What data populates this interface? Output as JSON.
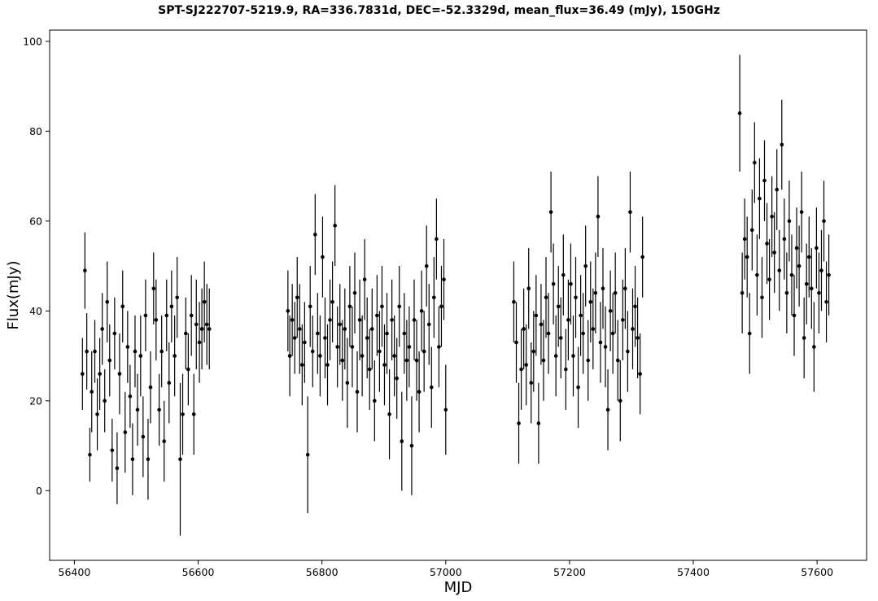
{
  "chart_data": {
    "type": "scatter",
    "title": "SPT-SJ222707-5219.9, RA=336.7831d, DEC=-52.3329d, mean_flux=36.49 (mJy), 150GHz",
    "xlabel": "MJD",
    "ylabel": "Flux(mJy)",
    "xlim": [
      56360,
      57680
    ],
    "ylim": [
      -15.5,
      102.5
    ],
    "xticks": [
      56400,
      56600,
      56800,
      57000,
      57200,
      57400,
      57600
    ],
    "yticks": [
      0,
      20,
      40,
      60,
      80,
      100
    ],
    "grid": false,
    "legend": "none",
    "error_bars": true,
    "marker_color": "#000000",
    "series": [
      {
        "points": [
          [
            56413,
            26,
            8
          ],
          [
            56417,
            49,
            8.5
          ],
          [
            56420,
            31,
            8.5
          ],
          [
            56425,
            8,
            6
          ],
          [
            56428,
            22,
            9
          ],
          [
            56433,
            31,
            7
          ],
          [
            56437,
            17,
            8
          ],
          [
            56441,
            26,
            8
          ],
          [
            56445,
            36,
            8
          ],
          [
            56449,
            20,
            7
          ],
          [
            56453,
            42,
            9
          ],
          [
            56457,
            29,
            8
          ],
          [
            56461,
            9,
            7
          ],
          [
            56465,
            35,
            8
          ],
          [
            56469,
            5,
            8
          ],
          [
            56473,
            26,
            9
          ],
          [
            56478,
            41,
            8
          ],
          [
            56482,
            13,
            9
          ],
          [
            56486,
            32,
            8
          ],
          [
            56490,
            21,
            7
          ],
          [
            56494,
            7,
            8
          ],
          [
            56498,
            31,
            8
          ],
          [
            56502,
            18,
            8
          ],
          [
            56507,
            30,
            9
          ],
          [
            56511,
            12,
            9
          ],
          [
            56515,
            39,
            8
          ],
          [
            56519,
            7,
            9
          ],
          [
            56523,
            23,
            8
          ],
          [
            56528,
            45,
            8
          ],
          [
            56532,
            38,
            9
          ],
          [
            56537,
            18,
            8
          ],
          [
            56541,
            31,
            8
          ],
          [
            56545,
            11,
            9
          ],
          [
            56549,
            39,
            8
          ],
          [
            56553,
            24,
            9
          ],
          [
            56557,
            41,
            8
          ],
          [
            56562,
            30,
            9
          ],
          [
            56566,
            43,
            9
          ],
          [
            56571,
            7,
            17
          ],
          [
            56575,
            17,
            9
          ],
          [
            56580,
            35,
            8
          ],
          [
            56584,
            27,
            8
          ],
          [
            56589,
            39,
            9
          ],
          [
            56593,
            17,
            9
          ],
          [
            56597,
            37,
            10
          ],
          [
            56602,
            33,
            9
          ],
          [
            56606,
            36,
            9
          ],
          [
            56610,
            42,
            9
          ],
          [
            56614,
            37,
            9
          ],
          [
            56618,
            36,
            9
          ],
          [
            56745,
            40,
            9
          ],
          [
            56748,
            30,
            9
          ],
          [
            56752,
            38,
            8
          ],
          [
            56756,
            34,
            8
          ],
          [
            56760,
            43,
            9
          ],
          [
            56764,
            36,
            10
          ],
          [
            56768,
            28,
            9
          ],
          [
            56772,
            33,
            9
          ],
          [
            56777,
            8,
            13
          ],
          [
            56781,
            41,
            9
          ],
          [
            56785,
            31,
            8
          ],
          [
            56789,
            57,
            9
          ],
          [
            56793,
            35,
            9
          ],
          [
            56797,
            30,
            9
          ],
          [
            56801,
            52,
            9
          ],
          [
            56805,
            34,
            9
          ],
          [
            56809,
            28,
            9
          ],
          [
            56813,
            38,
            9
          ],
          [
            56817,
            42,
            9
          ],
          [
            56821,
            59,
            9
          ],
          [
            56825,
            32,
            9
          ],
          [
            56829,
            37,
            9
          ],
          [
            56833,
            29,
            9
          ],
          [
            56837,
            36,
            9
          ],
          [
            56841,
            24,
            10
          ],
          [
            56845,
            41,
            9
          ],
          [
            56849,
            32,
            9
          ],
          [
            56853,
            44,
            9
          ],
          [
            56857,
            22,
            9
          ],
          [
            56861,
            38,
            9
          ],
          [
            56865,
            30,
            9
          ],
          [
            56869,
            47,
            9
          ],
          [
            56873,
            34,
            9
          ],
          [
            56877,
            27,
            9
          ],
          [
            56881,
            36,
            9
          ],
          [
            56885,
            20,
            9
          ],
          [
            56889,
            39,
            9
          ],
          [
            56893,
            31,
            9
          ],
          [
            56897,
            41,
            9
          ],
          [
            56901,
            28,
            9
          ],
          [
            56905,
            35,
            9
          ],
          [
            56909,
            17,
            10
          ],
          [
            56913,
            38,
            9
          ],
          [
            56917,
            30,
            9
          ],
          [
            56921,
            25,
            9
          ],
          [
            56925,
            41,
            9
          ],
          [
            56929,
            11,
            11
          ],
          [
            56933,
            35,
            9
          ],
          [
            56937,
            29,
            9
          ],
          [
            56941,
            32,
            9
          ],
          [
            56945,
            10,
            11
          ],
          [
            56949,
            38,
            9
          ],
          [
            56953,
            29,
            9
          ],
          [
            56957,
            22,
            9
          ],
          [
            56961,
            40,
            9
          ],
          [
            56965,
            31,
            9
          ],
          [
            56969,
            50,
            9
          ],
          [
            56973,
            37,
            9
          ],
          [
            56977,
            23,
            9
          ],
          [
            56981,
            43,
            9
          ],
          [
            56985,
            56,
            9
          ],
          [
            56989,
            32,
            9
          ],
          [
            56993,
            41,
            9
          ],
          [
            56997,
            47,
            9
          ],
          [
            57000,
            18,
            10
          ],
          [
            57110,
            42,
            9
          ],
          [
            57114,
            33,
            9
          ],
          [
            57118,
            15,
            9
          ],
          [
            57122,
            27,
            9
          ],
          [
            57126,
            36,
            9
          ],
          [
            57130,
            28,
            9
          ],
          [
            57134,
            45,
            9
          ],
          [
            57138,
            24,
            9
          ],
          [
            57142,
            31,
            9
          ],
          [
            57146,
            39,
            9
          ],
          [
            57150,
            15,
            9
          ],
          [
            57154,
            37,
            9
          ],
          [
            57158,
            29,
            9
          ],
          [
            57162,
            43,
            9
          ],
          [
            57166,
            35,
            9
          ],
          [
            57170,
            62,
            9
          ],
          [
            57174,
            46,
            9
          ],
          [
            57178,
            30,
            9
          ],
          [
            57182,
            41,
            9
          ],
          [
            57186,
            34,
            9
          ],
          [
            57190,
            48,
            9
          ],
          [
            57194,
            27,
            9
          ],
          [
            57198,
            38,
            9
          ],
          [
            57202,
            46,
            9
          ],
          [
            57206,
            30,
            9
          ],
          [
            57210,
            43,
            9
          ],
          [
            57214,
            23,
            9
          ],
          [
            57218,
            39,
            9
          ],
          [
            57222,
            35,
            9
          ],
          [
            57226,
            50,
            9
          ],
          [
            57230,
            29,
            9
          ],
          [
            57234,
            42,
            9
          ],
          [
            57238,
            36,
            9
          ],
          [
            57242,
            44,
            9
          ],
          [
            57246,
            61,
            9
          ],
          [
            57250,
            33,
            9
          ],
          [
            57254,
            45,
            9
          ],
          [
            57258,
            32,
            9
          ],
          [
            57262,
            18,
            9
          ],
          [
            57266,
            40,
            9
          ],
          [
            57270,
            35,
            9
          ],
          [
            57274,
            44,
            9
          ],
          [
            57278,
            29,
            9
          ],
          [
            57282,
            20,
            9
          ],
          [
            57286,
            38,
            9
          ],
          [
            57290,
            45,
            9
          ],
          [
            57294,
            31,
            9
          ],
          [
            57298,
            62,
            9
          ],
          [
            57302,
            36,
            9
          ],
          [
            57306,
            41,
            9
          ],
          [
            57310,
            34,
            9
          ],
          [
            57314,
            26,
            9
          ],
          [
            57318,
            52,
            9
          ],
          [
            57475,
            84,
            13
          ],
          [
            57479,
            44,
            9
          ],
          [
            57483,
            56,
            9
          ],
          [
            57487,
            52,
            9
          ],
          [
            57491,
            35,
            9
          ],
          [
            57495,
            58,
            9
          ],
          [
            57499,
            73,
            9
          ],
          [
            57503,
            48,
            9
          ],
          [
            57507,
            65,
            9
          ],
          [
            57511,
            43,
            9
          ],
          [
            57515,
            69,
            9
          ],
          [
            57519,
            55,
            9
          ],
          [
            57523,
            47,
            9
          ],
          [
            57527,
            61,
            9
          ],
          [
            57531,
            53,
            9
          ],
          [
            57535,
            67,
            9
          ],
          [
            57539,
            49,
            9
          ],
          [
            57543,
            77,
            10
          ],
          [
            57547,
            56,
            9
          ],
          [
            57551,
            44,
            9
          ],
          [
            57555,
            60,
            9
          ],
          [
            57559,
            48,
            9
          ],
          [
            57563,
            39,
            9
          ],
          [
            57567,
            54,
            9
          ],
          [
            57571,
            50,
            9
          ],
          [
            57575,
            62,
            9
          ],
          [
            57579,
            34,
            9
          ],
          [
            57583,
            46,
            9
          ],
          [
            57587,
            52,
            9
          ],
          [
            57591,
            45,
            9
          ],
          [
            57595,
            32,
            10
          ],
          [
            57599,
            54,
            9
          ],
          [
            57603,
            44,
            9
          ],
          [
            57607,
            49,
            9
          ],
          [
            57611,
            60,
            9
          ],
          [
            57615,
            42,
            9
          ],
          [
            57619,
            48,
            9
          ]
        ]
      }
    ]
  }
}
